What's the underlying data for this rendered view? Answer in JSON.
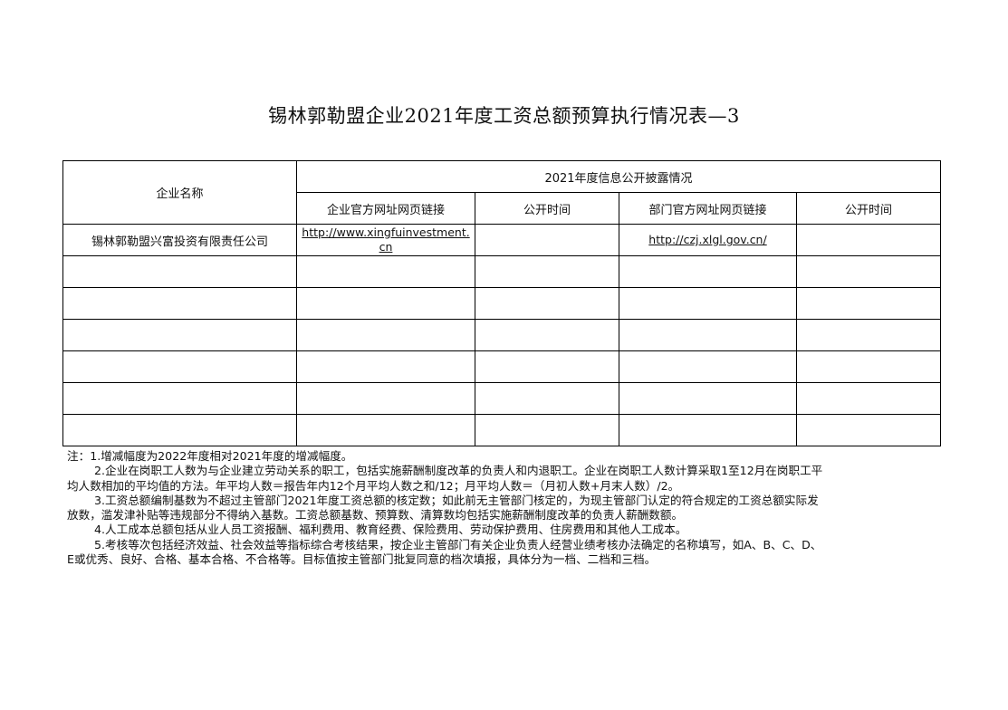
{
  "title": "锡林郭勒盟企业2021年度工资总额预算执行情况表—3",
  "table": {
    "col_company": "企业名称",
    "group_header": "2021年度信息公开披露情况",
    "headers": [
      "企业官方网址网页链接",
      "公开时间",
      "部门官方网址网页链接",
      "公开时间"
    ],
    "rows": [
      {
        "company": "锡林郭勒盟兴富投资有限责任公司",
        "company_link": "http://www.xingfuinvestment.cn",
        "company_time": "",
        "dept_link": "http://czj.xlgl.gov.cn/",
        "dept_time": ""
      }
    ]
  },
  "notes": [
    "注：1.增减幅度为2022年度相对2021年度的增减幅度。",
    "2.企业在岗职工人数为与企业建立劳动关系的职工，包括实施薪酬制度改革的负责人和内退职工。企业在岗职工人数计算采取1至12月在岗职工平",
    "均人数相加的平均值的方法。年平均人数＝报告年内12个月平均人数之和/12；月平均人数＝（月初人数+月末人数）/2。",
    "3.工资总额编制基数为不超过主管部门2021年度工资总额的核定数；如此前无主管部门核定的，为现主管部门认定的符合规定的工资总额实际发",
    "放数，滥发津补贴等违规部分不得纳入基数。工资总额基数、预算数、清算数均包括实施薪酬制度改革的负责人薪酬数额。",
    "4.人工成本总额包括从业人员工资报酬、福利费用、教育经费、保险费用、劳动保护费用、住房费用和其他人工成本。",
    "5.考核等次包括经济效益、社会效益等指标综合考核结果，按企业主管部门有关企业负责人经营业绩考核办法确定的名称填写，如A、B、C、D、",
    "E或优秀、良好、合格、基本合格、不合格等。目标值按主管部门批复同意的档次填报，具体分为一档、二档和三档。"
  ]
}
